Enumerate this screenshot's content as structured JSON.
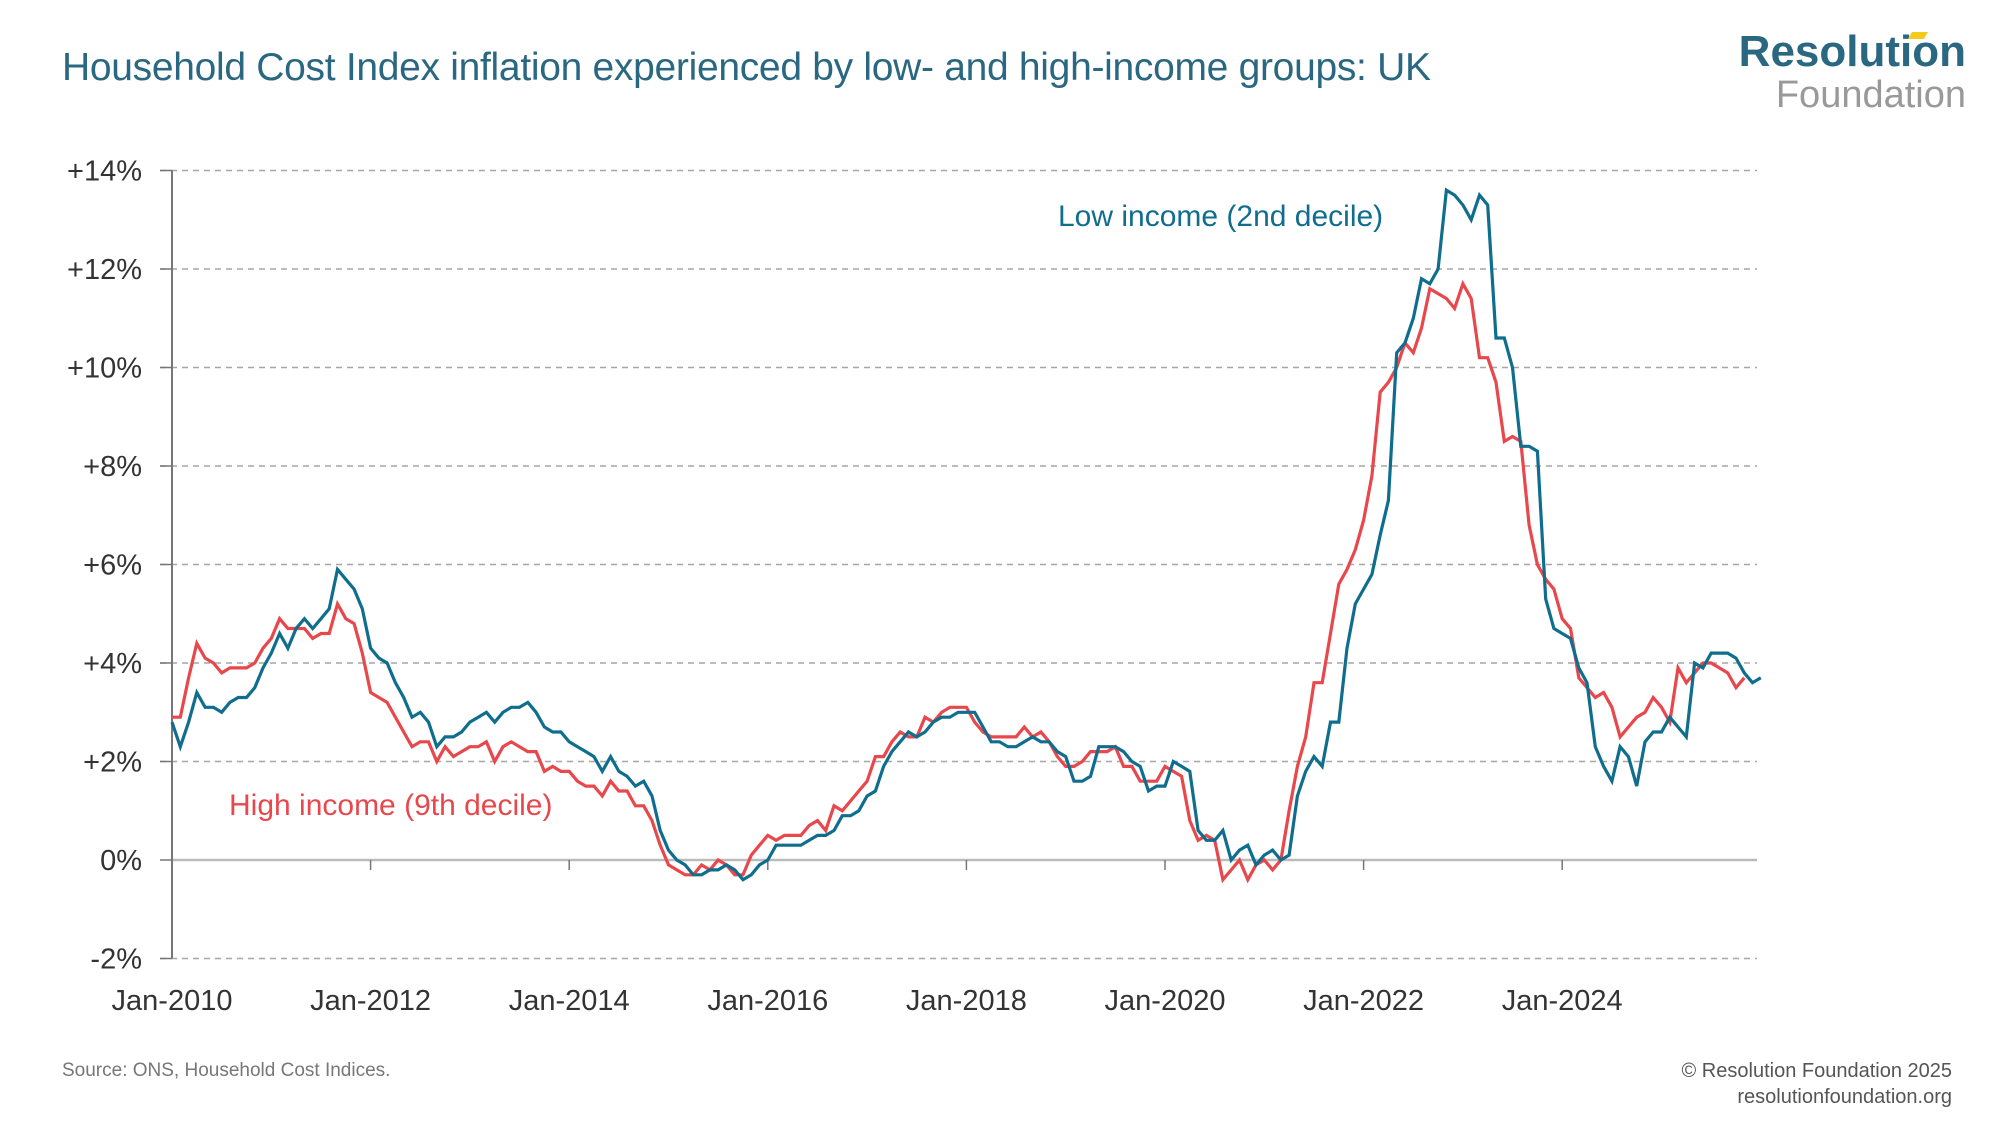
{
  "header": {
    "title": "Household Cost Index inflation experienced by low- and high-income groups: UK",
    "logo_top": "Resolution",
    "logo_bottom": "Foundation"
  },
  "footer": {
    "source": "Source: ONS, Household Cost Indices.",
    "copyright": "© Resolution Foundation 2025",
    "website": "resolutionfoundation.org"
  },
  "colors": {
    "low_income": "#0f6d8e",
    "high_income": "#e8474c",
    "title": "#2a6882",
    "grid": "#a6a6a6",
    "axis": "#777777",
    "logo_accent": "#f2cb1d"
  },
  "chart_data": {
    "type": "line",
    "title": "Household Cost Index inflation experienced by low- and high-income groups: UK",
    "xlabel": "",
    "ylabel": "",
    "x_start": "Jan-2010",
    "x_frequency": "monthly",
    "x_ticks": [
      "Jan-2010",
      "Jan-2012",
      "Jan-2014",
      "Jan-2016",
      "Jan-2018",
      "Jan-2020",
      "Jan-2022",
      "Jan-2024"
    ],
    "y_ticks": [
      "-2%",
      "0%",
      "+2%",
      "+4%",
      "+6%",
      "+8%",
      "+10%",
      "+12%",
      "+14%"
    ],
    "ylim": [
      -2,
      14
    ],
    "y_tick_values": [
      -2,
      0,
      2,
      4,
      6,
      8,
      10,
      12,
      14
    ],
    "grid": "horizontal-dashed",
    "legend": "inline-labels",
    "series": [
      {
        "name": "Low income (2nd decile)",
        "label_position": "top-center-right",
        "values": [
          2.8,
          2.3,
          2.8,
          3.4,
          3.1,
          3.1,
          3.0,
          3.2,
          3.3,
          3.3,
          3.5,
          3.9,
          4.2,
          4.6,
          4.3,
          4.7,
          4.9,
          4.7,
          4.9,
          5.1,
          5.9,
          5.7,
          5.5,
          5.1,
          4.3,
          4.1,
          4.0,
          3.6,
          3.3,
          2.9,
          3.0,
          2.8,
          2.3,
          2.5,
          2.5,
          2.6,
          2.8,
          2.9,
          3.0,
          2.8,
          3.0,
          3.1,
          3.1,
          3.2,
          3.0,
          2.7,
          2.6,
          2.6,
          2.4,
          2.3,
          2.2,
          2.1,
          1.8,
          2.1,
          1.8,
          1.7,
          1.5,
          1.6,
          1.3,
          0.6,
          0.2,
          0.0,
          -0.1,
          -0.3,
          -0.3,
          -0.2,
          -0.2,
          -0.1,
          -0.2,
          -0.4,
          -0.3,
          -0.1,
          0.0,
          0.3,
          0.3,
          0.3,
          0.3,
          0.4,
          0.5,
          0.5,
          0.6,
          0.9,
          0.9,
          1.0,
          1.3,
          1.4,
          1.9,
          2.2,
          2.4,
          2.6,
          2.5,
          2.6,
          2.8,
          2.9,
          2.9,
          3.0,
          3.0,
          3.0,
          2.7,
          2.4,
          2.4,
          2.3,
          2.3,
          2.4,
          2.5,
          2.4,
          2.4,
          2.2,
          2.1,
          1.6,
          1.6,
          1.7,
          2.3,
          2.3,
          2.3,
          2.2,
          2.0,
          1.9,
          1.4,
          1.5,
          1.5,
          2.0,
          1.9,
          1.8,
          0.6,
          0.4,
          0.4,
          0.6,
          0.0,
          0.2,
          0.3,
          -0.1,
          0.1,
          0.2,
          0.0,
          0.1,
          1.3,
          1.8,
          2.1,
          1.9,
          2.8,
          2.8,
          4.3,
          5.2,
          5.5,
          5.8,
          6.6,
          7.3,
          10.3,
          10.5,
          11.0,
          11.8,
          11.7,
          12.0,
          13.6,
          13.5,
          13.3,
          13.0,
          13.5,
          13.3,
          10.6,
          10.6,
          10.0,
          8.4,
          8.4,
          8.3,
          5.3,
          4.7,
          4.6,
          4.5,
          3.9,
          3.6,
          2.3,
          1.9,
          1.6,
          2.3,
          2.1,
          1.5,
          2.4,
          2.6,
          2.6,
          2.9,
          2.7,
          2.5,
          4.0,
          3.9,
          4.2,
          4.2,
          4.2,
          4.1,
          3.8,
          3.6,
          3.7
        ]
      },
      {
        "name": "High income (9th decile)",
        "label_position": "left-lower",
        "values": [
          2.9,
          2.9,
          3.7,
          4.4,
          4.1,
          4.0,
          3.8,
          3.9,
          3.9,
          3.9,
          4.0,
          4.3,
          4.5,
          4.9,
          4.7,
          4.7,
          4.7,
          4.5,
          4.6,
          4.6,
          5.2,
          4.9,
          4.8,
          4.2,
          3.4,
          3.3,
          3.2,
          2.9,
          2.6,
          2.3,
          2.4,
          2.4,
          2.0,
          2.3,
          2.1,
          2.2,
          2.3,
          2.3,
          2.4,
          2.0,
          2.3,
          2.4,
          2.3,
          2.2,
          2.2,
          1.8,
          1.9,
          1.8,
          1.8,
          1.6,
          1.5,
          1.5,
          1.3,
          1.6,
          1.4,
          1.4,
          1.1,
          1.1,
          0.8,
          0.3,
          -0.1,
          -0.2,
          -0.3,
          -0.3,
          -0.1,
          -0.2,
          0.0,
          -0.1,
          -0.3,
          -0.3,
          0.1,
          0.3,
          0.5,
          0.4,
          0.5,
          0.5,
          0.5,
          0.7,
          0.8,
          0.6,
          1.1,
          1.0,
          1.2,
          1.4,
          1.6,
          2.1,
          2.1,
          2.4,
          2.6,
          2.5,
          2.5,
          2.9,
          2.8,
          3.0,
          3.1,
          3.1,
          3.1,
          2.8,
          2.6,
          2.5,
          2.5,
          2.5,
          2.5,
          2.7,
          2.5,
          2.6,
          2.4,
          2.1,
          1.9,
          1.9,
          2.0,
          2.2,
          2.2,
          2.2,
          2.3,
          1.9,
          1.9,
          1.6,
          1.6,
          1.6,
          1.9,
          1.8,
          1.7,
          0.8,
          0.4,
          0.5,
          0.4,
          -0.4,
          -0.2,
          0.0,
          -0.4,
          -0.1,
          0.0,
          -0.2,
          0.0,
          1.0,
          1.9,
          2.5,
          3.6,
          3.6,
          4.6,
          5.6,
          5.9,
          6.3,
          6.9,
          7.8,
          9.5,
          9.7,
          10.0,
          10.5,
          10.3,
          10.8,
          11.6,
          11.5,
          11.4,
          11.2,
          11.7,
          11.4,
          10.2,
          10.2,
          9.7,
          8.5,
          8.6,
          8.5,
          6.8,
          6.0,
          5.7,
          5.5,
          4.9,
          4.7,
          3.7,
          3.5,
          3.3,
          3.4,
          3.1,
          2.5,
          2.7,
          2.9,
          3.0,
          3.3,
          3.1,
          2.8,
          3.9,
          3.6,
          3.8,
          4.0,
          4.0,
          3.9,
          3.8,
          3.5,
          3.7
        ]
      }
    ]
  }
}
